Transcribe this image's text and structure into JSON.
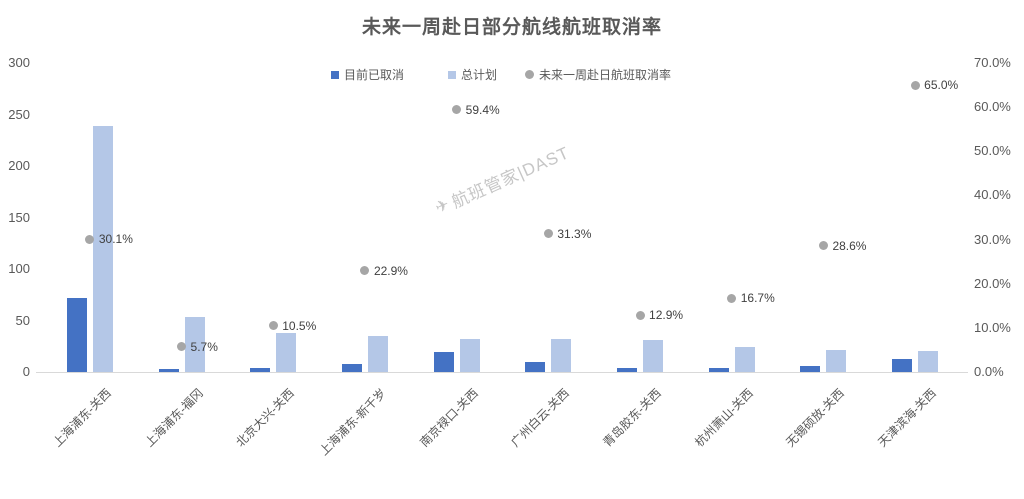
{
  "watermark": {
    "icon": "hbgj-logo",
    "text": "航班管家|DAST"
  },
  "chart_data": {
    "type": "bar",
    "title": "未来一周赴日部分航线航班取消率",
    "grid": false,
    "legend_position": "top",
    "categories": [
      "上海浦东-关西",
      "上海浦东-福冈",
      "北京大兴-关西",
      "上海浦东-新千岁",
      "南京禄口-关西",
      "广州白云-关西",
      "青岛胶东-关西",
      "杭州萧山-关西",
      "无锡硕放-关西",
      "天津滨海-关西"
    ],
    "series": [
      {
        "name": "目前已取消",
        "type": "bar",
        "axis": "left",
        "color": "#4472C4",
        "values": [
          72,
          3,
          4,
          8,
          19,
          10,
          4,
          4,
          6,
          13
        ]
      },
      {
        "name": "总计划",
        "type": "bar",
        "axis": "left",
        "color": "#B4C7E7",
        "values": [
          239,
          53,
          38,
          35,
          32,
          32,
          31,
          24,
          21,
          20
        ]
      },
      {
        "name": "未来一周赴日航班取消率",
        "type": "scatter",
        "axis": "right",
        "color": "#A6A6A6",
        "values": [
          30.1,
          5.7,
          10.5,
          22.9,
          59.4,
          31.3,
          12.9,
          16.7,
          28.6,
          65.0
        ],
        "labels": [
          "30.1%",
          "5.7%",
          "10.5%",
          "22.9%",
          "59.4%",
          "31.3%",
          "12.9%",
          "16.7%",
          "28.6%",
          "65.0%"
        ]
      }
    ],
    "left_axis": {
      "min": 0,
      "max": 300,
      "ticks": [
        0,
        50,
        100,
        150,
        200,
        250,
        300
      ]
    },
    "right_axis": {
      "min": 0,
      "max": 70,
      "tick_labels": [
        "0.0%",
        "10.0%",
        "20.0%",
        "30.0%",
        "40.0%",
        "50.0%",
        "60.0%",
        "70.0%"
      ]
    }
  }
}
